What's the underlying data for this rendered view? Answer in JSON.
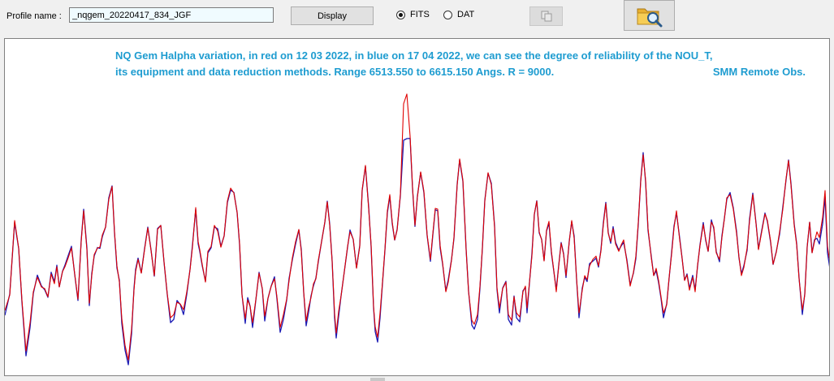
{
  "toolbar": {
    "profile_label": "Profile name :",
    "profile_value": "_nqgem_20220417_834_JGF",
    "display_label": "Display",
    "radio_fits": "FITS",
    "radio_dat": "DAT",
    "selected_format": "FITS",
    "copy_icon": "copy-icon",
    "open_icon": "folder-search-icon"
  },
  "plot": {
    "caption_line1": "NQ Gem Halpha variation, in red on 12 03 2022, in blue on 17 04 2022,  we can see the degree of reliability of the NOU_T,",
    "caption_line2_left": "its equipment and data reduction methods. Range 6513.550 to 6615.150 Angs. R = 9000.",
    "caption_line2_right": "SMM Remote Obs."
  },
  "chart_data": {
    "type": "line",
    "xlim": [
      6513.55,
      6615.15
    ],
    "x_unit": "Angstrom",
    "grid": false,
    "series": [
      {
        "color": "#e00000"
      },
      {
        "color": "#1a1ab4"
      }
    ]
  }
}
